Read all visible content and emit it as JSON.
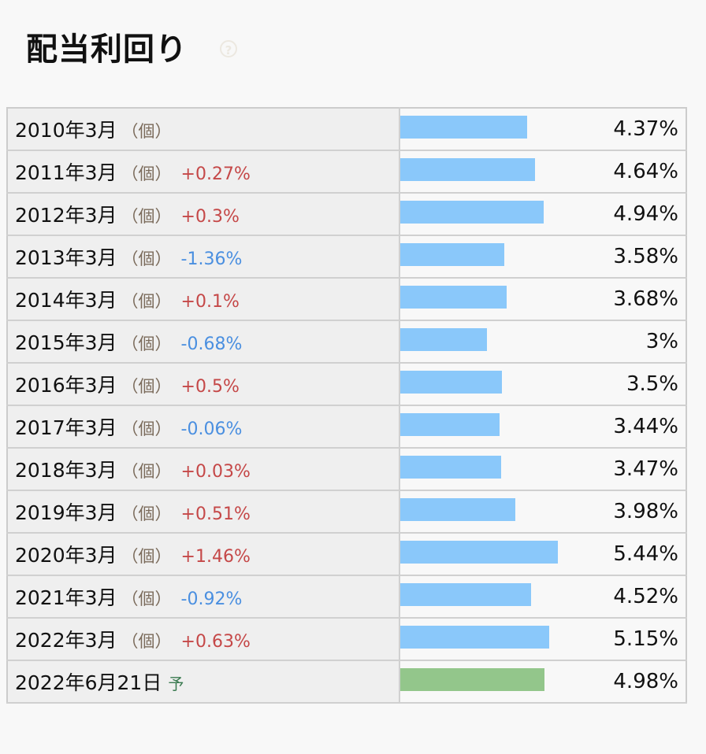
{
  "title": "配当利回り",
  "help_icon": "question-circle-icon",
  "colors": {
    "bar_actual": "#8ac8fa",
    "bar_forecast": "#93c68b",
    "positive": "#c54848",
    "negative": "#4a8fe0"
  },
  "bar_max": 5.44,
  "rows": [
    {
      "period": "2010年3月",
      "unit": "（個）",
      "change": "",
      "value": 4.37,
      "value_label": "4.37%"
    },
    {
      "period": "2011年3月",
      "unit": "（個）",
      "change": "+0.27%",
      "value": 4.64,
      "value_label": "4.64%"
    },
    {
      "period": "2012年3月",
      "unit": "（個）",
      "change": "+0.3%",
      "value": 4.94,
      "value_label": "4.94%"
    },
    {
      "period": "2013年3月",
      "unit": "（個）",
      "change": "-1.36%",
      "value": 3.58,
      "value_label": "3.58%"
    },
    {
      "period": "2014年3月",
      "unit": "（個）",
      "change": "+0.1%",
      "value": 3.68,
      "value_label": "3.68%"
    },
    {
      "period": "2015年3月",
      "unit": "（個）",
      "change": "-0.68%",
      "value": 3,
      "value_label": "3%"
    },
    {
      "period": "2016年3月",
      "unit": "（個）",
      "change": "+0.5%",
      "value": 3.5,
      "value_label": "3.5%"
    },
    {
      "period": "2017年3月",
      "unit": "（個）",
      "change": "-0.06%",
      "value": 3.44,
      "value_label": "3.44%"
    },
    {
      "period": "2018年3月",
      "unit": "（個）",
      "change": "+0.03%",
      "value": 3.47,
      "value_label": "3.47%"
    },
    {
      "period": "2019年3月",
      "unit": "（個）",
      "change": "+0.51%",
      "value": 3.98,
      "value_label": "3.98%"
    },
    {
      "period": "2020年3月",
      "unit": "（個）",
      "change": "+1.46%",
      "value": 5.44,
      "value_label": "5.44%"
    },
    {
      "period": "2021年3月",
      "unit": "（個）",
      "change": "-0.92%",
      "value": 4.52,
      "value_label": "4.52%"
    },
    {
      "period": "2022年3月",
      "unit": "（個）",
      "change": "+0.63%",
      "value": 5.15,
      "value_label": "5.15%"
    }
  ],
  "forecast": {
    "period": "2022年6月21日",
    "badge": "予",
    "value": 4.98,
    "value_label": "4.98%"
  }
}
